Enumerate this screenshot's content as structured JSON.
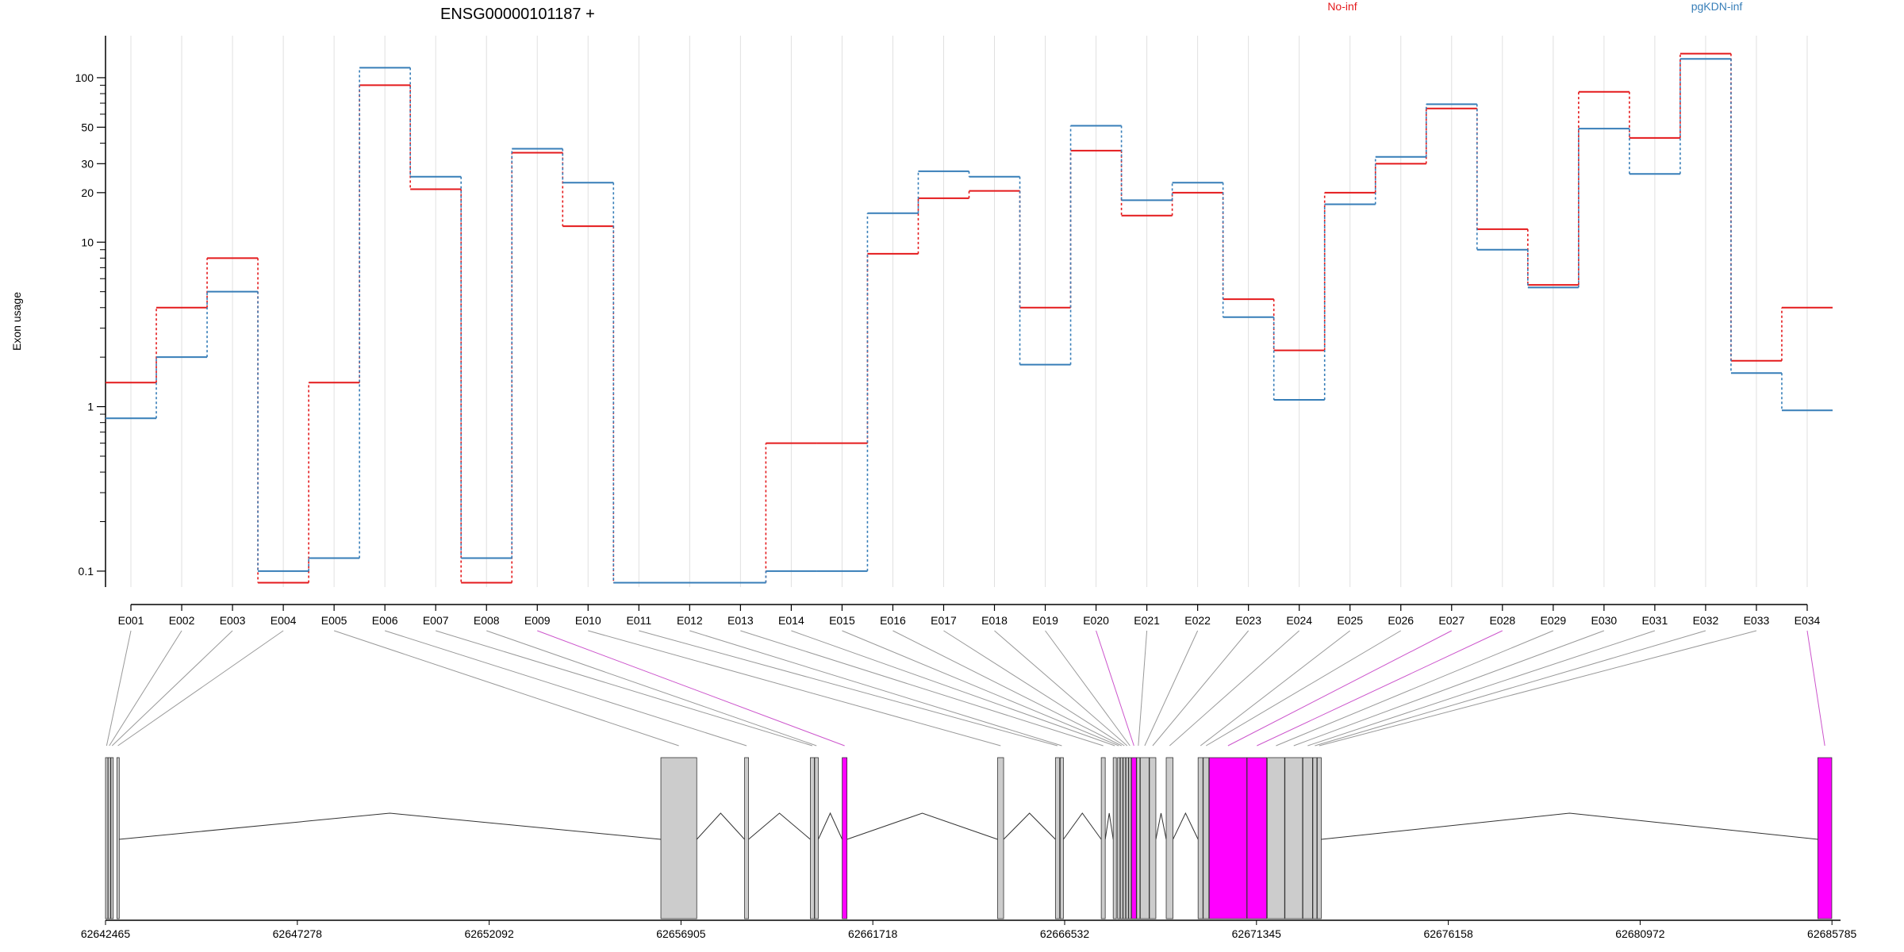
{
  "chart_data": {
    "type": "line",
    "title": "ENSG00000101187 +",
    "ylabel": "Exon usage",
    "xlabel": "",
    "yscale": "log",
    "ylim": [
      0.08,
      180
    ],
    "grid": "vertical",
    "legend_placement": "top-right",
    "yticks": [
      0.1,
      1,
      10,
      20,
      30,
      50,
      100
    ],
    "ytick_labels": [
      "0.1",
      "1",
      "10",
      "20",
      "30",
      "50",
      "100"
    ],
    "categories": [
      "E001",
      "E002",
      "E003",
      "E004",
      "E005",
      "E006",
      "E007",
      "E008",
      "E009",
      "E010",
      "E011",
      "E012",
      "E013",
      "E014",
      "E015",
      "E016",
      "E017",
      "E018",
      "E019",
      "E020",
      "E021",
      "E022",
      "E023",
      "E024",
      "E025",
      "E026",
      "E027",
      "E028",
      "E029",
      "E030",
      "E031",
      "E032",
      "E033",
      "E034"
    ],
    "series": [
      {
        "name": "No-inf",
        "color": "#e41a1c",
        "values": [
          1.4,
          4.0,
          8.0,
          0.085,
          1.4,
          90,
          21,
          0.085,
          35,
          12.5,
          0.085,
          0.085,
          0.085,
          0.6,
          0.6,
          8.5,
          18.5,
          20.5,
          4.0,
          36,
          14.5,
          20,
          4.5,
          2.2,
          20,
          30,
          65,
          12,
          5.5,
          82,
          43,
          140,
          1.9,
          4.0
        ]
      },
      {
        "name": "pgKDN-inf",
        "color": "#377eb8",
        "values": [
          0.85,
          2.0,
          5.0,
          0.1,
          0.12,
          115,
          25,
          0.12,
          37,
          23,
          0.085,
          0.085,
          0.085,
          0.1,
          0.1,
          15,
          27,
          25,
          1.8,
          51,
          18,
          23,
          3.5,
          1.1,
          17,
          33,
          69,
          9.0,
          5.3,
          49,
          26,
          130,
          1.6,
          0.95
        ]
      }
    ],
    "genome": {
      "tick_labels": [
        "62642465",
        "62647278",
        "62652092",
        "62656905",
        "62661718",
        "62666532",
        "62671345",
        "62676158",
        "62680972",
        "62685785"
      ],
      "range": [
        62642465,
        62686000
      ],
      "exons": [
        {
          "id": "E001",
          "start": 62642465,
          "end": 62642520,
          "highlight": false
        },
        {
          "id": "E002",
          "start": 62642530,
          "end": 62642590,
          "highlight": false
        },
        {
          "id": "E003",
          "start": 62642600,
          "end": 62642660,
          "highlight": false
        },
        {
          "id": "E004",
          "start": 62642750,
          "end": 62642800,
          "highlight": false
        },
        {
          "id": "E005",
          "start": 62656400,
          "end": 62657300,
          "highlight": false
        },
        {
          "id": "E006",
          "start": 62658500,
          "end": 62658600,
          "highlight": false
        },
        {
          "id": "E007",
          "start": 62660150,
          "end": 62660250,
          "highlight": false
        },
        {
          "id": "E008",
          "start": 62660260,
          "end": 62660350,
          "highlight": false
        },
        {
          "id": "E009",
          "start": 62660950,
          "end": 62661070,
          "highlight": true
        },
        {
          "id": "E010",
          "start": 62664850,
          "end": 62665000,
          "highlight": false
        },
        {
          "id": "E011",
          "start": 62666300,
          "end": 62666400,
          "highlight": false
        },
        {
          "id": "E012",
          "start": 62666420,
          "end": 62666500,
          "highlight": false
        },
        {
          "id": "E013",
          "start": 62667450,
          "end": 62667550,
          "highlight": false
        },
        {
          "id": "E014",
          "start": 62667750,
          "end": 62667830,
          "highlight": false
        },
        {
          "id": "E015",
          "start": 62667860,
          "end": 62667920,
          "highlight": false
        },
        {
          "id": "E016",
          "start": 62667930,
          "end": 62667990,
          "highlight": false
        },
        {
          "id": "E017",
          "start": 62668000,
          "end": 62668060,
          "highlight": false
        },
        {
          "id": "E018",
          "start": 62668070,
          "end": 62668130,
          "highlight": false
        },
        {
          "id": "E019",
          "start": 62668140,
          "end": 62668200,
          "highlight": false
        },
        {
          "id": "E020",
          "start": 62668210,
          "end": 62668330,
          "highlight": true
        },
        {
          "id": "E021",
          "start": 62668340,
          "end": 62668420,
          "highlight": false
        },
        {
          "id": "E022",
          "start": 62668430,
          "end": 62668650,
          "highlight": false
        },
        {
          "id": "E023",
          "start": 62668660,
          "end": 62668820,
          "highlight": false
        },
        {
          "id": "E024",
          "start": 62669080,
          "end": 62669250,
          "highlight": false
        },
        {
          "id": "E025",
          "start": 62669880,
          "end": 62670000,
          "highlight": false
        },
        {
          "id": "E026",
          "start": 62670010,
          "end": 62670150,
          "highlight": false
        },
        {
          "id": "E027",
          "start": 62670160,
          "end": 62671100,
          "highlight": true
        },
        {
          "id": "E028",
          "start": 62671110,
          "end": 62671600,
          "highlight": true
        },
        {
          "id": "E029",
          "start": 62671620,
          "end": 62672050,
          "highlight": false
        },
        {
          "id": "E030",
          "start": 62672060,
          "end": 62672500,
          "highlight": false
        },
        {
          "id": "E031",
          "start": 62672510,
          "end": 62672750,
          "highlight": false
        },
        {
          "id": "E032",
          "start": 62672760,
          "end": 62672860,
          "highlight": false
        },
        {
          "id": "E033",
          "start": 62672870,
          "end": 62672970,
          "highlight": false
        },
        {
          "id": "E034",
          "start": 62685430,
          "end": 62685780,
          "highlight": true
        }
      ]
    }
  },
  "colors": {
    "highlight_exon": "#ff00ff",
    "normal_exon": "#cccccc",
    "grid": "#e0e0e0"
  }
}
